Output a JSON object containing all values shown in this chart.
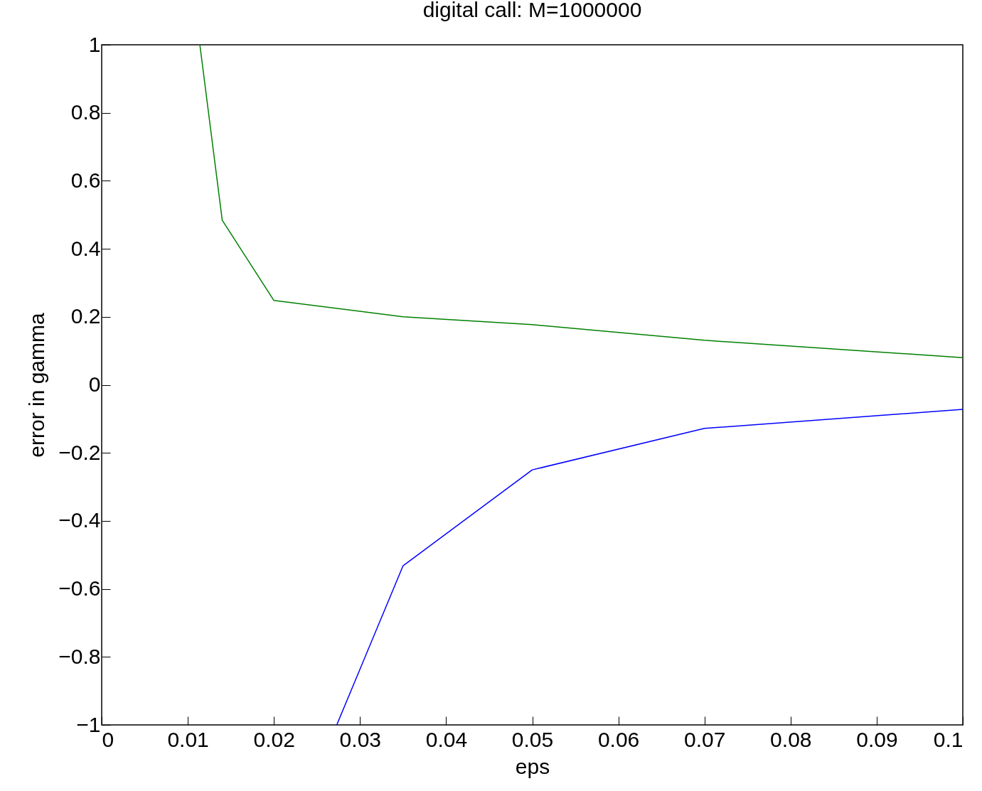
{
  "chart_data": {
    "type": "line",
    "title": "digital call: M=1000000",
    "xlabel": "eps",
    "ylabel": "error in gamma",
    "xlim": [
      0,
      0.1
    ],
    "xticks": [
      0,
      0.01,
      0.02,
      0.03,
      0.04,
      0.05,
      0.06,
      0.07,
      0.08,
      0.09,
      0.1
    ],
    "ylim": [
      -1,
      1
    ],
    "yticks": [
      {
        "value": -1,
        "label": "−1"
      },
      {
        "value": -0.8,
        "label": "−0.8"
      },
      {
        "value": -0.6,
        "label": "−0.6"
      },
      {
        "value": -0.4,
        "label": "−0.4"
      },
      {
        "value": -0.2,
        "label": "−0.2"
      },
      0,
      0.2,
      0.4,
      0.6,
      0.8,
      1
    ],
    "grid": false,
    "legend": false,
    "marker": "none",
    "line_style": "solid",
    "series": [
      {
        "color": "#0000ff",
        "x": [
          0.0273,
          0.035,
          0.05,
          0.07,
          0.1
        ],
        "values": [
          -1,
          -0.532,
          -0.25,
          -0.128,
          -0.072
        ]
      },
      {
        "color": "#008000",
        "x": [
          0.0114,
          0.014,
          0.02,
          0.035,
          0.05,
          0.07,
          0.1
        ],
        "values": [
          1,
          0.484,
          0.248,
          0.2,
          0.177,
          0.131,
          0.08
        ]
      }
    ]
  }
}
